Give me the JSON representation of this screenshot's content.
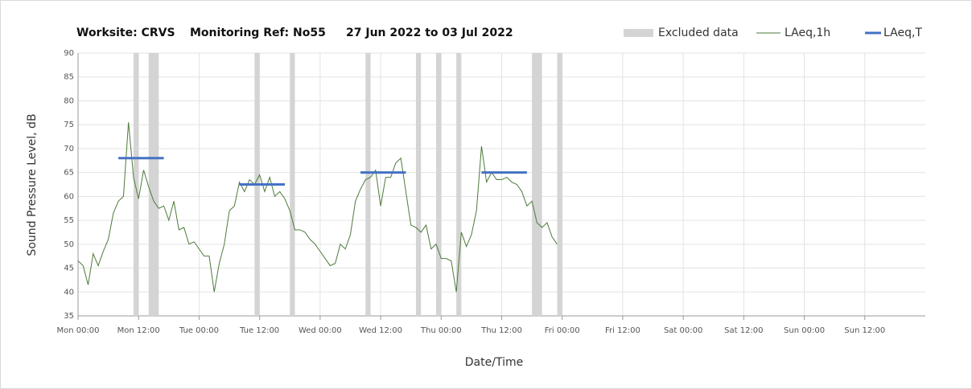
{
  "chart_data": {
    "type": "line",
    "title_parts": [
      "Worksite: CRVS",
      "Monitoring Ref: No55",
      "27 Jun 2022 to 03 Jul 2022"
    ],
    "y_label": "Sound Pressure Level, dB",
    "x_label": "Date/Time",
    "xlim": [
      0,
      168
    ],
    "xticks": [
      {
        "value": 0,
        "label": "Mon 00:00"
      },
      {
        "value": 12,
        "label": "Mon 12:00"
      },
      {
        "value": 24,
        "label": "Tue 00:00"
      },
      {
        "value": 36,
        "label": "Tue 12:00"
      },
      {
        "value": 48,
        "label": "Wed 00:00"
      },
      {
        "value": 60,
        "label": "Wed 12:00"
      },
      {
        "value": 72,
        "label": "Thu 00:00"
      },
      {
        "value": 84,
        "label": "Thu 12:00"
      },
      {
        "value": 96,
        "label": "Fri 00:00"
      },
      {
        "value": 108,
        "label": "Fri 12:00"
      },
      {
        "value": 120,
        "label": "Sat 00:00"
      },
      {
        "value": 132,
        "label": "Sat 12:00"
      },
      {
        "value": 144,
        "label": "Sun 00:00"
      },
      {
        "value": 156,
        "label": "Sun 12:00"
      }
    ],
    "ylim": [
      35,
      90
    ],
    "yticks": [
      35,
      40,
      45,
      50,
      55,
      60,
      65,
      70,
      75,
      80,
      85,
      90
    ],
    "grid": true,
    "legend": "top-right",
    "excluded": {
      "name": "Excluded data",
      "color": "#d4d4d4",
      "ranges": [
        [
          11,
          12
        ],
        [
          14,
          16
        ],
        [
          35,
          36
        ],
        [
          42,
          43
        ],
        [
          57,
          58
        ],
        [
          67,
          68
        ],
        [
          71,
          72
        ],
        [
          75,
          76
        ],
        [
          90,
          92
        ],
        [
          95,
          96
        ]
      ]
    },
    "series": [
      {
        "name": "LAeq,1h",
        "color": "#4e7a3a",
        "x": [
          0,
          1,
          2,
          3,
          4,
          5,
          6,
          7,
          8,
          9,
          10,
          11,
          12,
          13,
          14,
          15,
          16,
          17,
          18,
          19,
          20,
          21,
          22,
          23,
          24,
          25,
          26,
          27,
          28,
          29,
          30,
          31,
          32,
          33,
          34,
          35,
          36,
          37,
          38,
          39,
          40,
          41,
          42,
          43,
          44,
          45,
          46,
          47,
          48,
          49,
          50,
          51,
          52,
          53,
          54,
          55,
          56,
          57,
          58,
          59,
          60,
          61,
          62,
          63,
          64,
          65,
          66,
          67,
          68,
          69,
          70,
          71,
          72,
          73,
          74,
          75,
          76,
          77,
          78,
          79,
          80,
          81,
          82,
          83,
          84,
          85,
          86,
          87,
          88,
          89,
          90,
          91,
          92,
          93,
          94,
          95
        ],
        "values": [
          46.5,
          45.5,
          41.5,
          48,
          45.5,
          48.5,
          51,
          56.5,
          59,
          60,
          75.5,
          64,
          59.5,
          65.5,
          62,
          59,
          57.5,
          58,
          55,
          59,
          53,
          53.5,
          50,
          50.5,
          49,
          47.5,
          47.5,
          40,
          46,
          50,
          57,
          58,
          63,
          61,
          63.5,
          62.5,
          64.5,
          61,
          64,
          60,
          61,
          59.5,
          57,
          53,
          53,
          52.5,
          51,
          50,
          48.5,
          47,
          45.5,
          46,
          50,
          49,
          52,
          59,
          61.5,
          63.5,
          64,
          65.5,
          58,
          64,
          64,
          67,
          68,
          61,
          54,
          53.5,
          52.5,
          54,
          49,
          50,
          47,
          47,
          46.5,
          40,
          52.5,
          49.5,
          52,
          57,
          70.5,
          63,
          65,
          63.5,
          63.5,
          64,
          63,
          62.5,
          61,
          58,
          59,
          54.5,
          53.5,
          54.5,
          51.5,
          50
        ]
      }
    ],
    "laeq_t": {
      "name": "LAeq,T",
      "color": "#4472c4",
      "segments": [
        {
          "x": [
            8,
            17
          ],
          "value": 68
        },
        {
          "x": [
            32,
            41
          ],
          "value": 62.5
        },
        {
          "x": [
            56,
            65
          ],
          "value": 65
        },
        {
          "x": [
            80,
            89
          ],
          "value": 65
        }
      ]
    }
  }
}
